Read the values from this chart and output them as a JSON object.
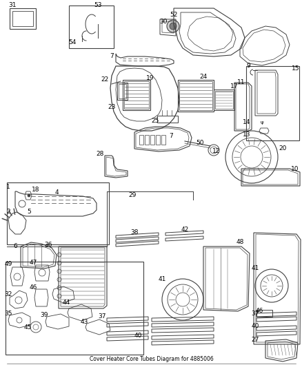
{
  "title": "Cover Heater Core Tubes Diagram for 4885006",
  "background_color": "#ffffff",
  "line_color": "#404040",
  "text_color": "#000000",
  "fig_width": 4.39,
  "fig_height": 5.33,
  "dpi": 100
}
